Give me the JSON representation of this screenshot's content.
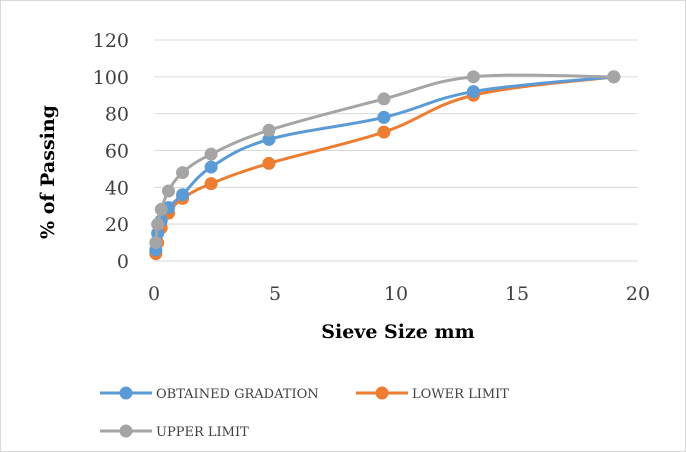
{
  "chart_data": {
    "type": "line",
    "xlabel": "Sieve Size mm",
    "ylabel": "% of Passing",
    "xlim": [
      0,
      20
    ],
    "ylim": [
      0,
      120
    ],
    "xticks": [
      0,
      5,
      10,
      15,
      20
    ],
    "yticks": [
      0,
      20,
      40,
      60,
      80,
      100,
      120
    ],
    "grid": "horizontal",
    "legend_position": "bottom",
    "series": [
      {
        "name": "OBTAINED GRADATION",
        "color": "#5b9bd5",
        "x": [
          0.075,
          0.15,
          0.3,
          0.6,
          1.18,
          2.36,
          4.75,
          9.5,
          13.2,
          19
        ],
        "y": [
          6,
          15,
          22,
          29,
          36,
          51,
          66,
          78,
          92,
          100
        ]
      },
      {
        "name": "LOWER LIMIT",
        "color": "#ed7d31",
        "x": [
          0.075,
          0.15,
          0.3,
          0.6,
          1.18,
          2.36,
          4.75,
          9.5,
          13.2,
          19
        ],
        "y": [
          4,
          10,
          18,
          26,
          34,
          42,
          53,
          70,
          90,
          100
        ]
      },
      {
        "name": "UPPER LIMIT",
        "color": "#a5a5a5",
        "x": [
          0.075,
          0.15,
          0.3,
          0.6,
          1.18,
          2.36,
          4.75,
          9.5,
          13.2,
          19
        ],
        "y": [
          10,
          20,
          28,
          38,
          48,
          58,
          71,
          88,
          100,
          100
        ]
      }
    ]
  }
}
